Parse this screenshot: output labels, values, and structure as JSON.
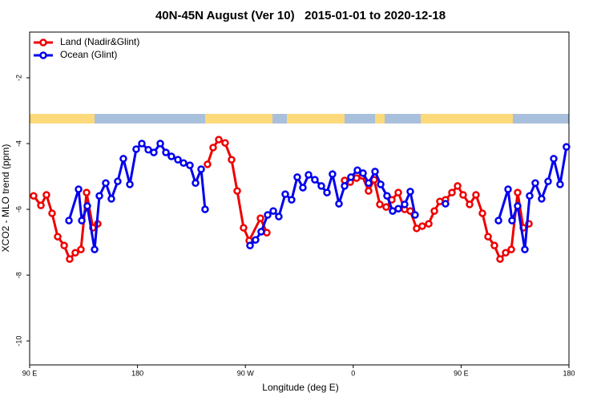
{
  "chart_data": {
    "type": "line",
    "title": "40N-45N August (Ver 10)   2015-01-01 to 2020-12-18",
    "x_label": "Longitude (deg E)",
    "y_label": "XCO2 - MLO trend (ppm)",
    "xlim": [
      90,
      540
    ],
    "ylim": [
      -10.73,
      -0.61
    ],
    "xticks": [
      {
        "value": 90,
        "label": "90 E"
      },
      180,
      {
        "value": 270,
        "label": "90 W"
      },
      {
        "value": 360,
        "label": "0"
      },
      {
        "value": 450,
        "label": "90 E"
      },
      {
        "value": 540,
        "label": "180"
      }
    ],
    "yticks": [
      -2,
      -4,
      -6,
      -8,
      -10
    ],
    "legend": "top-left",
    "series": [
      {
        "name": "Land (Nadir&Glint)",
        "color": "#ee0000",
        "x": [
          93.3,
          99.4,
          104.0,
          108.7,
          113.4,
          118.8,
          123.4,
          128.1,
          132.8,
          137.5,
          142.8,
          146.8,
          190,
          238.4,
          243.1,
          247.8,
          253.1,
          258.5,
          263.2,
          268.5,
          273.2,
          282.6,
          287.9,
          320,
          352.8,
          357.5,
          362.8,
          367.5,
          372.8,
          377.5,
          382.2,
          387.5,
          392.2,
          397.6,
          402.9,
          407.6,
          412.9,
          417.6,
          423.0,
          427.7,
          432.3,
          437.0,
          442.4,
          447.1,
          451.7,
          457.1,
          462.4,
          467.8,
          472.5,
          477.8,
          482.5,
          487.2,
          491.9,
          497.2,
          501.9,
          506.6
        ],
        "values": [
          -5.59,
          -5.88,
          -5.56,
          -6.12,
          -6.83,
          -7.1,
          -7.51,
          -7.32,
          -7.22,
          -5.49,
          -6.56,
          -6.44,
          null,
          -4.63,
          -4.12,
          -3.88,
          -3.98,
          -4.49,
          -5.44,
          -6.56,
          -6.95,
          -6.27,
          -6.71,
          null,
          -5.12,
          -5.17,
          -5.05,
          -4.98,
          -5.44,
          -5.1,
          -5.85,
          -5.93,
          -5.71,
          -5.49,
          -6.0,
          -6.05,
          -6.58,
          -6.51,
          -6.44,
          -6.05,
          -5.76,
          -5.71,
          -5.49,
          -5.29,
          -5.56,
          -5.85,
          -5.56,
          -6.12,
          -6.83,
          -7.1,
          -7.51,
          -7.32,
          -7.22,
          -5.49,
          -6.56,
          -6.44
        ]
      },
      {
        "name": "Ocean (Glint)",
        "color": "#0000ee",
        "x": [
          122.8,
          130.8,
          133.5,
          138.1,
          144.2,
          148.2,
          153.5,
          158.2,
          163.5,
          168.2,
          173.6,
          178.9,
          183.6,
          189.0,
          193.6,
          199.0,
          203.7,
          208.3,
          213.7,
          218.4,
          223.7,
          228.4,
          233.1,
          236.4,
          255,
          273.9,
          278.5,
          283.2,
          288.6,
          293.3,
          297.9,
          303.3,
          308.6,
          313.3,
          318.0,
          322.7,
          328.0,
          333.4,
          338.1,
          342.7,
          348.1,
          352.8,
          358.1,
          363.5,
          368.2,
          372.8,
          378.2,
          382.9,
          388.2,
          392.9,
          397.6,
          402.9,
          407.6,
          411.6,
          425,
          437.0,
          460,
          481.2,
          489.2,
          492.5,
          497.2,
          503.2,
          507.2,
          511.9,
          517.2,
          522.6,
          527.3,
          532.6,
          537.9
        ],
        "values": [
          -6.34,
          -5.39,
          -6.34,
          -5.9,
          -7.22,
          -5.59,
          -5.2,
          -5.68,
          -5.15,
          -4.46,
          -5.24,
          -4.17,
          -4.0,
          -4.19,
          -4.27,
          -4.0,
          -4.27,
          -4.39,
          -4.49,
          -4.59,
          -4.66,
          -5.2,
          -4.78,
          -6.0,
          null,
          -7.1,
          -6.93,
          -6.68,
          -6.17,
          -6.05,
          -6.22,
          -5.54,
          -5.71,
          -5.02,
          -5.34,
          -4.95,
          -5.1,
          -5.29,
          -5.49,
          -4.93,
          -5.83,
          -5.29,
          -5.02,
          -4.81,
          -4.9,
          -5.2,
          -4.85,
          -5.24,
          -5.59,
          -6.05,
          -5.98,
          -5.85,
          -5.46,
          -6.17,
          null,
          -5.83,
          null,
          -6.34,
          -5.39,
          -6.34,
          -5.9,
          -7.22,
          -5.59,
          -5.2,
          -5.68,
          -5.15,
          -4.46,
          -5.24,
          -4.1
        ]
      }
    ]
  }
}
